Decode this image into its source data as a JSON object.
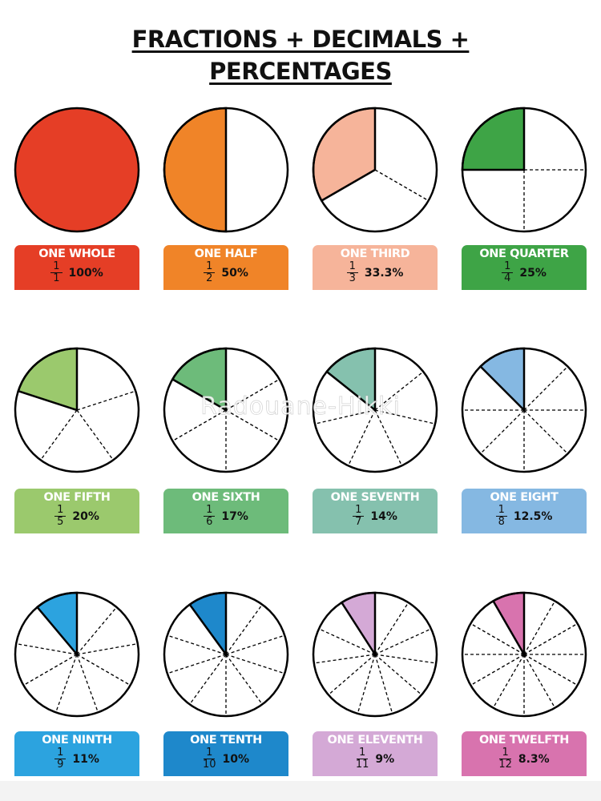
{
  "title_line1": "FRACTIONS + DECIMALS +",
  "title_line2": "PERCENTAGES",
  "watermark": "Radouane-Hikki",
  "items": [
    {
      "name": "ONE WHOLE",
      "numerator": "1",
      "denominator": "1",
      "percent": "100%",
      "parts": 1,
      "color": "#E53E26"
    },
    {
      "name": "ONE HALF",
      "numerator": "1",
      "denominator": "2",
      "percent": "50%",
      "parts": 2,
      "color": "#F08428"
    },
    {
      "name": "ONE THIRD",
      "numerator": "1",
      "denominator": "3",
      "percent": "33.3%",
      "parts": 3,
      "color": "#F6B49A"
    },
    {
      "name": "ONE QUARTER",
      "numerator": "1",
      "denominator": "4",
      "percent": "25%",
      "parts": 4,
      "color": "#3EA446"
    },
    {
      "name": "ONE FIFTH",
      "numerator": "1",
      "denominator": "5",
      "percent": "20%",
      "parts": 5,
      "color": "#9BC96D"
    },
    {
      "name": "ONE SIXTH",
      "numerator": "1",
      "denominator": "6",
      "percent": "17%",
      "parts": 6,
      "color": "#6DBB7A"
    },
    {
      "name": "ONE SEVENTH",
      "numerator": "1",
      "denominator": "7",
      "percent": "14%",
      "parts": 7,
      "color": "#85C1AE"
    },
    {
      "name": "ONE EIGHT",
      "numerator": "1",
      "denominator": "8",
      "percent": "12.5%",
      "parts": 8,
      "color": "#85B8E2"
    },
    {
      "name": "ONE NINTH",
      "numerator": "1",
      "denominator": "9",
      "percent": "11%",
      "parts": 9,
      "color": "#2CA3DF"
    },
    {
      "name": "ONE TENTH",
      "numerator": "1",
      "denominator": "10",
      "percent": "10%",
      "parts": 10,
      "color": "#1E88CB"
    },
    {
      "name": "ONE ELEVENTH",
      "numerator": "1",
      "denominator": "11",
      "percent": "9%",
      "parts": 11,
      "color": "#D4A9D6"
    },
    {
      "name": "ONE TWELFTH",
      "numerator": "1",
      "denominator": "12",
      "percent": "8.3%",
      "parts": 12,
      "color": "#D873AE"
    }
  ]
}
